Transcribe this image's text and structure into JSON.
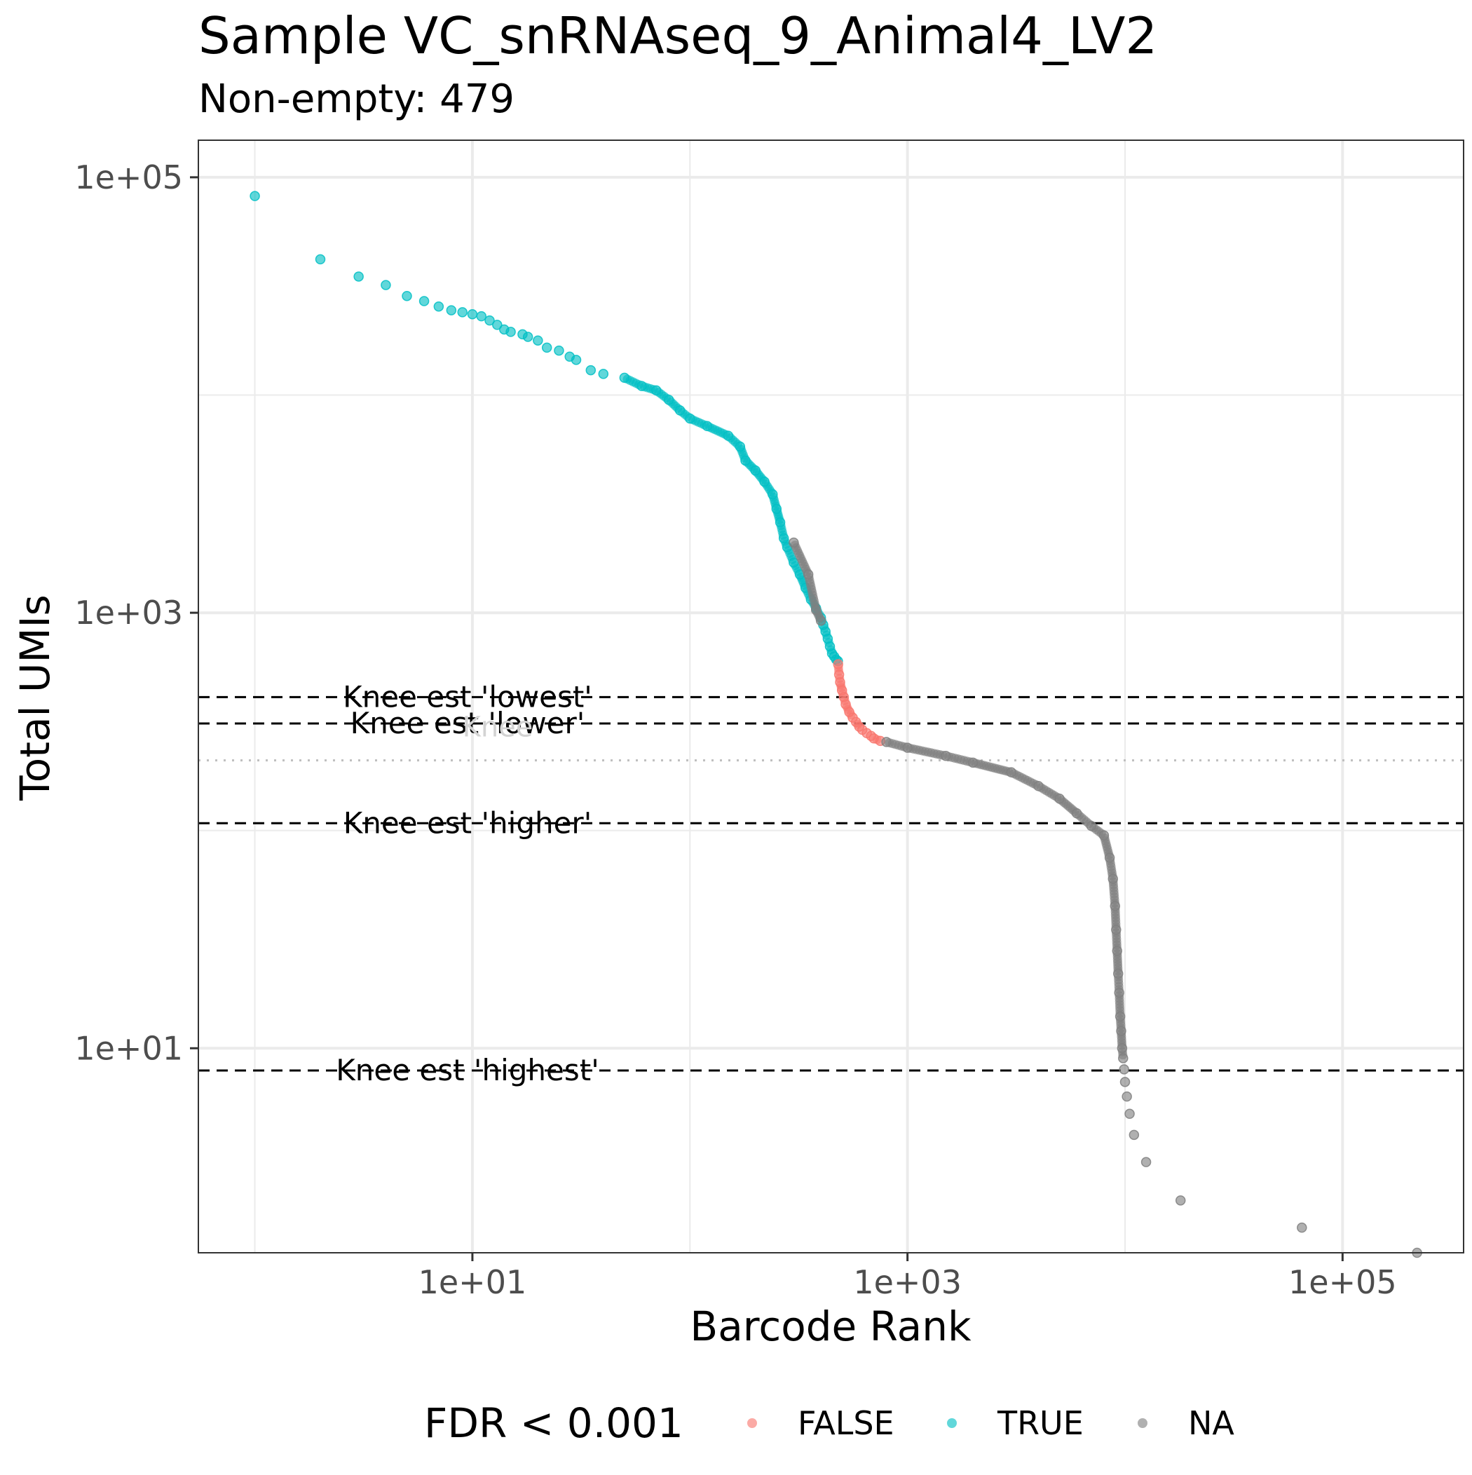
{
  "chart_data": {
    "type": "scatter",
    "title": "Sample VC_snRNAseq_9_Animal4_LV2",
    "subtitle": "Non-empty: 479",
    "xlabel": "Barcode Rank",
    "ylabel": "Total UMIs",
    "x_scale": "log10",
    "y_scale": "log10",
    "xlim": [
      0.55,
      360000
    ],
    "ylim": [
      1.15,
      148000
    ],
    "x_ticks": [
      {
        "value": 10,
        "label": "1e+01"
      },
      {
        "value": 1000,
        "label": "1e+03"
      },
      {
        "value": 100000,
        "label": "1e+05"
      }
    ],
    "y_ticks": [
      {
        "value": 10,
        "label": "1e+01"
      },
      {
        "value": 1000,
        "label": "1e+03"
      },
      {
        "value": 100000,
        "label": "1e+05"
      }
    ],
    "grid": true,
    "legend": {
      "title": "FDR < 0.001",
      "position": "bottom",
      "entries": [
        {
          "label": "FALSE",
          "color": "#F8766D"
        },
        {
          "label": "TRUE",
          "color": "#00BFC4"
        },
        {
          "label": "NA",
          "color": "#7F7F7F"
        }
      ]
    },
    "series": [
      {
        "name": "TRUE",
        "color": "#00BFC4",
        "points": [
          [
            1,
            82000
          ],
          [
            2,
            42000
          ],
          [
            3,
            35000
          ],
          [
            4,
            32000
          ],
          [
            5,
            28500
          ],
          [
            6,
            27000
          ],
          [
            7,
            25500
          ],
          [
            8,
            24500
          ],
          [
            9,
            24000
          ],
          [
            10,
            23500
          ],
          [
            11,
            23000
          ],
          [
            12,
            22000
          ],
          [
            13,
            21000
          ],
          [
            14,
            20000
          ],
          [
            15,
            19500
          ],
          [
            17,
            19000
          ],
          [
            18,
            18500
          ],
          [
            20,
            17800
          ],
          [
            22,
            16500
          ],
          [
            25,
            16000
          ],
          [
            28,
            15000
          ],
          [
            30,
            14500
          ],
          [
            35,
            13000
          ],
          [
            40,
            12500
          ],
          [
            50,
            12000
          ],
          [
            60,
            11000
          ],
          [
            70,
            10500
          ],
          [
            80,
            9500
          ],
          [
            90,
            8500
          ],
          [
            100,
            7800
          ],
          [
            120,
            7200
          ],
          [
            150,
            6500
          ],
          [
            170,
            5800
          ],
          [
            180,
            5000
          ],
          [
            200,
            4500
          ],
          [
            220,
            4000
          ],
          [
            240,
            3500
          ],
          [
            250,
            3000
          ],
          [
            260,
            2600
          ],
          [
            270,
            2200
          ],
          [
            280,
            2000
          ],
          [
            300,
            1700
          ],
          [
            320,
            1500
          ],
          [
            340,
            1300
          ],
          [
            360,
            1150
          ],
          [
            380,
            1050
          ],
          [
            400,
            950
          ],
          [
            410,
            880
          ],
          [
            420,
            820
          ],
          [
            430,
            760
          ],
          [
            440,
            700
          ],
          [
            450,
            650
          ],
          [
            460,
            630
          ],
          [
            470,
            610
          ],
          [
            479,
            600
          ]
        ]
      },
      {
        "name": "FALSE",
        "color": "#F8766D",
        "points": [
          [
            480,
            580
          ],
          [
            485,
            520
          ],
          [
            490,
            480
          ],
          [
            500,
            440
          ],
          [
            510,
            410
          ],
          [
            520,
            380
          ],
          [
            540,
            350
          ],
          [
            560,
            330
          ],
          [
            580,
            315
          ],
          [
            600,
            300
          ],
          [
            620,
            290
          ],
          [
            650,
            280
          ],
          [
            680,
            272
          ],
          [
            700,
            265
          ],
          [
            750,
            258
          ]
        ]
      },
      {
        "name": "NA",
        "color": "#7F7F7F",
        "points": [
          [
            300,
            2100
          ],
          [
            350,
            1500
          ],
          [
            380,
            1030
          ],
          [
            400,
            920
          ],
          [
            800,
            255
          ],
          [
            1000,
            240
          ],
          [
            1500,
            220
          ],
          [
            2000,
            205
          ],
          [
            3000,
            185
          ],
          [
            4000,
            160
          ],
          [
            5000,
            140
          ],
          [
            6000,
            120
          ],
          [
            7000,
            105
          ],
          [
            8000,
            95
          ],
          [
            8500,
            75
          ],
          [
            8800,
            60
          ],
          [
            9000,
            45
          ],
          [
            9100,
            35
          ],
          [
            9200,
            28
          ],
          [
            9300,
            22
          ],
          [
            9400,
            18
          ],
          [
            9500,
            14
          ],
          [
            9600,
            12
          ],
          [
            9700,
            10
          ],
          [
            9800,
            9
          ],
          [
            9900,
            8
          ],
          [
            10000,
            7
          ],
          [
            10200,
            6
          ],
          [
            10500,
            5
          ],
          [
            11000,
            4
          ],
          [
            12500,
            3
          ],
          [
            18000,
            2
          ],
          [
            65000,
            1.5
          ],
          [
            220000,
            1.15
          ]
        ]
      }
    ],
    "reference_lines": [
      {
        "label": "Knee est 'lowest'",
        "y": 410,
        "style": "dashed"
      },
      {
        "label": "Knee est 'lower'",
        "y": 310,
        "style": "dashed"
      },
      {
        "label": "Knee est 'higher'",
        "y": 108,
        "style": "dashed"
      },
      {
        "label": "Knee est 'highest'",
        "y": 7.9,
        "style": "dashed"
      },
      {
        "label": "Knee",
        "y": 210,
        "style": "dotted"
      }
    ]
  }
}
